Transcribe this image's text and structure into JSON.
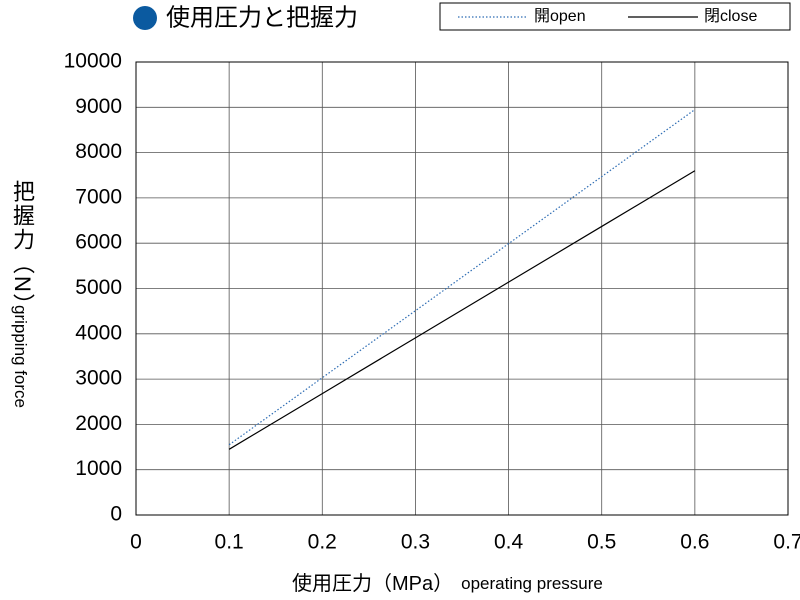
{
  "chart_data": {
    "type": "line",
    "title": "使用圧力と把握力",
    "xlabel": "使用圧力（MPa）",
    "xlabel_en": "operating pressure",
    "ylabel": "把握力（N）",
    "ylabel_en": "gripping force",
    "x": [
      0.1,
      0.2,
      0.3,
      0.4,
      0.5,
      0.6
    ],
    "series": [
      {
        "name": "開open",
        "color": "#2e6db4",
        "dash": "dotted",
        "values": [
          1550,
          3030,
          4510,
          5990,
          7470,
          8950
        ]
      },
      {
        "name": "閉close",
        "color": "#000000",
        "dash": "solid",
        "values": [
          1450,
          2680,
          3910,
          5140,
          6370,
          7600
        ]
      }
    ],
    "xlim": [
      0,
      0.7
    ],
    "xticks": [
      0,
      0.1,
      0.2,
      0.3,
      0.4,
      0.5,
      0.6,
      0.7
    ],
    "ylim": [
      0,
      10000
    ],
    "yticks": [
      0,
      1000,
      2000,
      3000,
      4000,
      5000,
      6000,
      7000,
      8000,
      9000,
      10000
    ],
    "grid": true,
    "legend": "top-right",
    "title_marker_color": "#0b5aa0"
  }
}
